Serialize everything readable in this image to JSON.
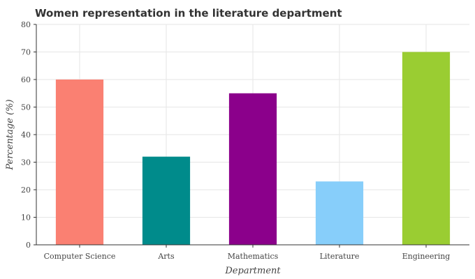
{
  "chart_data": {
    "type": "bar",
    "title": "Women representation in the literature department",
    "xlabel": "Department",
    "ylabel": "Percentage (%)",
    "categories": [
      "Computer Science",
      "Arts",
      "Mathematics",
      "Literature",
      "Engineering"
    ],
    "values": [
      60,
      32,
      55,
      23,
      70
    ],
    "colors": [
      "#fa8072",
      "#008b8b",
      "#8b008b",
      "#87cefa",
      "#9acd32"
    ],
    "ylim": [
      0,
      80
    ],
    "yticks": [
      "0",
      "10",
      "20",
      "30",
      "40",
      "50",
      "60",
      "70",
      "80"
    ],
    "grid": true,
    "legend": "none"
  }
}
